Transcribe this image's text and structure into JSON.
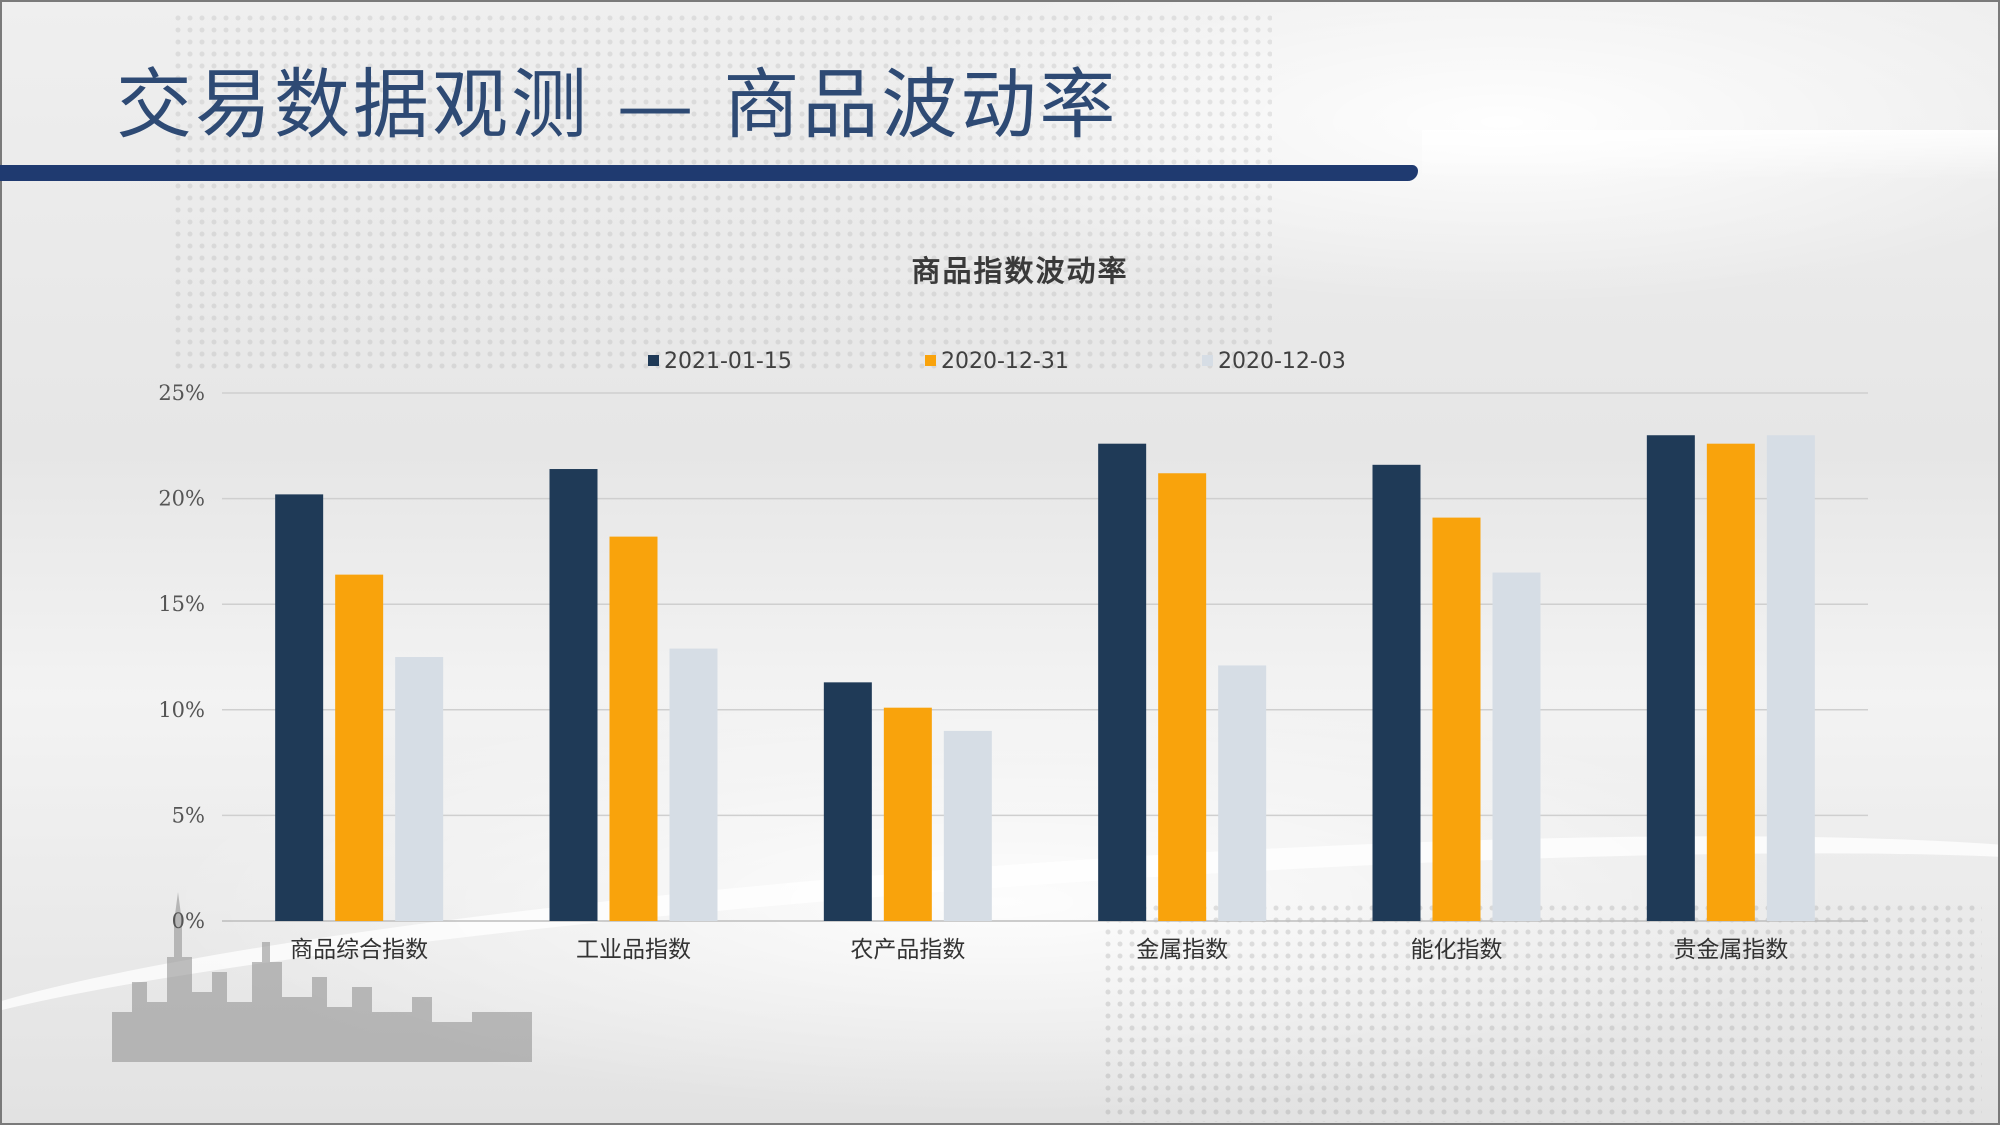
{
  "page": {
    "title": "交易数据观测 — 商品波动率"
  },
  "colors": {
    "title": "#2e4a74",
    "title_bar": "#1f3a70",
    "series_1": "#1f3a57",
    "series_2": "#f9a30c",
    "series_3": "#d6dde5",
    "gridline": "#cfcfcf"
  },
  "chart_data": {
    "type": "bar",
    "title": "商品指数波动率",
    "xlabel": "",
    "ylabel": "",
    "ylim": [
      0,
      25
    ],
    "y_ticks": [
      0,
      5,
      10,
      15,
      20,
      25
    ],
    "y_tick_labels": [
      "0%",
      "5%",
      "10%",
      "15%",
      "20%",
      "25%"
    ],
    "grid": true,
    "legend_position": "top-center",
    "categories": [
      "商品综合指数",
      "工业品指数",
      "农产品指数",
      "金属指数",
      "能化指数",
      "贵金属指数"
    ],
    "series": [
      {
        "name": "2021-01-15",
        "color": "#1f3a57",
        "values": [
          20.2,
          21.4,
          11.3,
          22.6,
          21.6,
          23.0
        ]
      },
      {
        "name": "2020-12-31",
        "color": "#f9a30c",
        "values": [
          16.4,
          18.2,
          10.1,
          21.2,
          19.1,
          22.6
        ]
      },
      {
        "name": "2020-12-03",
        "color": "#d6dde5",
        "values": [
          12.5,
          12.9,
          9.0,
          12.1,
          16.5,
          23.0
        ]
      }
    ]
  }
}
